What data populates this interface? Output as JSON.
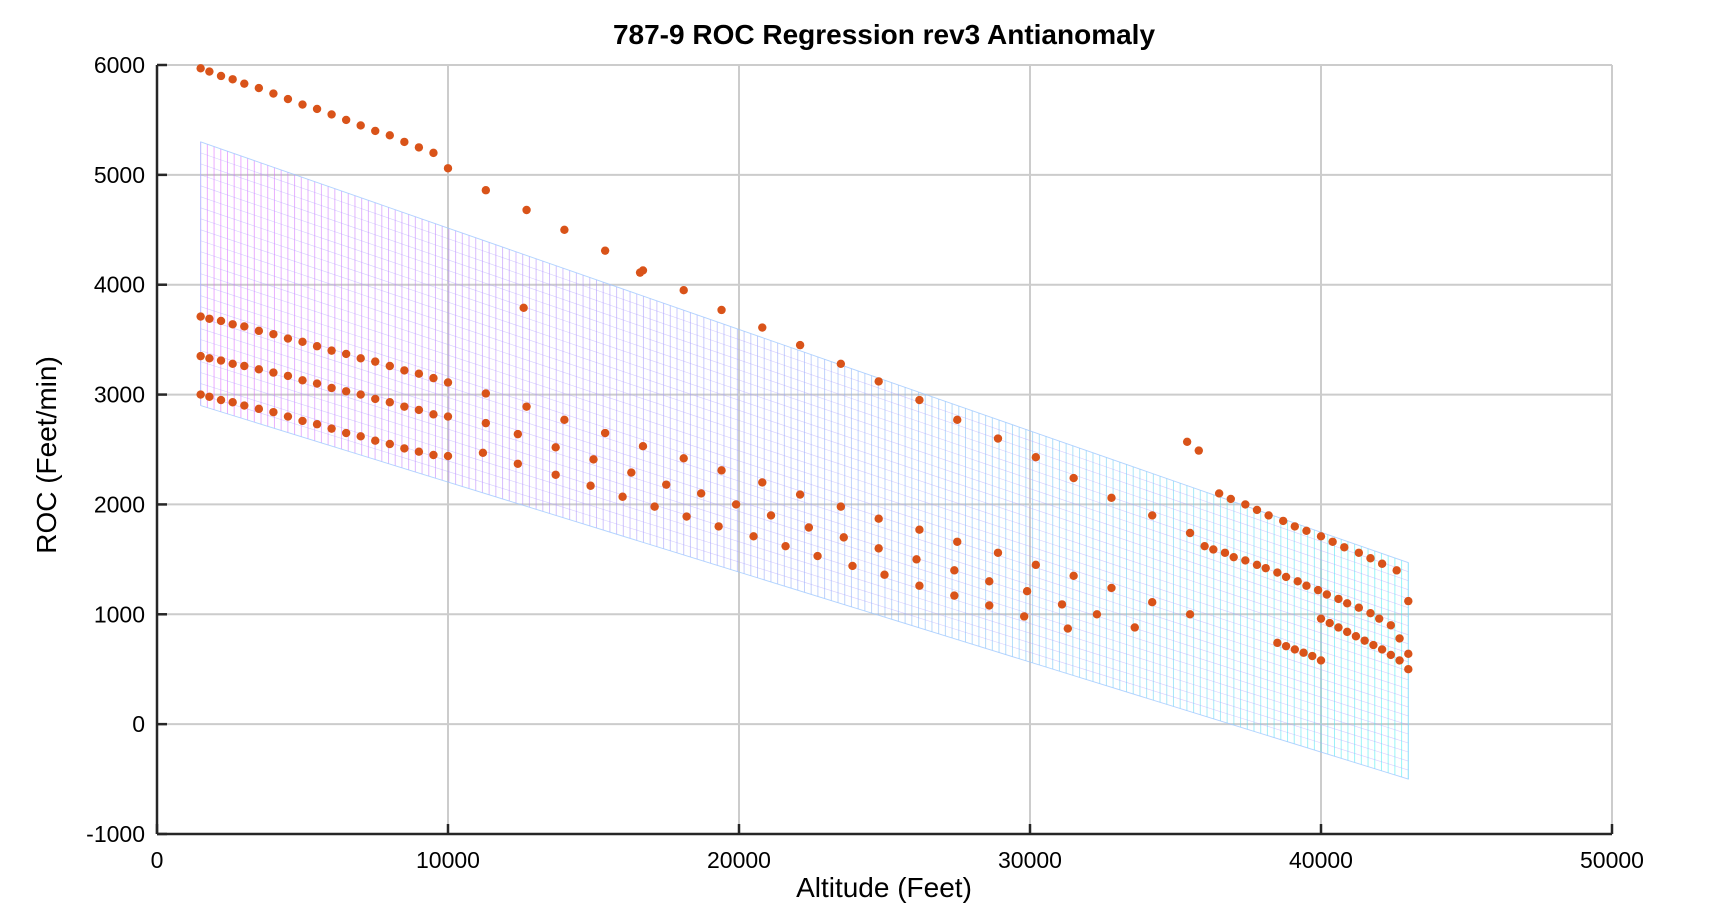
{
  "chart_data": {
    "type": "scatter",
    "title": "787-9 ROC Regression rev3 Antianomaly",
    "xlabel": "Altitude (Feet)",
    "ylabel": "ROC (Feet/min)",
    "xlim": [
      0,
      50000
    ],
    "ylim": [
      -1000,
      6000
    ],
    "xticks": [
      0,
      10000,
      20000,
      30000,
      40000,
      50000
    ],
    "yticks": [
      -1000,
      0,
      1000,
      2000,
      3000,
      4000,
      5000,
      6000
    ],
    "grid": true,
    "colors": {
      "points": "#d95319",
      "surface_high": "#e066ff",
      "surface_low": "#40f0f0",
      "grid": "#cccccc",
      "axis": "#262626"
    },
    "regression_surface": {
      "x_range": [
        1500,
        43000
      ],
      "upper_edge": [
        [
          1500,
          5300
        ],
        [
          43000,
          1470
        ]
      ],
      "lower_edge": [
        [
          1500,
          2900
        ],
        [
          43000,
          -500
        ]
      ]
    },
    "series": [
      {
        "x": [
          1500,
          1800,
          2200,
          2600,
          3000,
          3500,
          4000,
          4500,
          5000,
          5500,
          6000,
          6500,
          7000,
          7500,
          8000,
          8500,
          9000,
          9500,
          10000,
          11300,
          12700,
          14000,
          15400,
          16700,
          18100,
          19400,
          20800,
          22100,
          23500,
          24800,
          26200,
          27500,
          28900,
          30200,
          31500,
          32800,
          34200,
          35500,
          1500,
          1800,
          2200,
          2600,
          3000,
          3500,
          4000,
          4500,
          5000,
          5500,
          6000,
          6500,
          7000,
          7500,
          8000,
          8500,
          9000,
          9500,
          10000,
          11300,
          12700,
          14000,
          15400,
          16700,
          18100,
          19400,
          20800,
          22100,
          23500,
          24800,
          26200,
          27500,
          28900,
          30200,
          31500,
          32800,
          34200,
          35500,
          1500,
          1800,
          2200,
          2600,
          3000,
          3500,
          4000,
          4500,
          5000,
          5500,
          6000,
          6500,
          7000,
          7500,
          8000,
          8500,
          9000,
          9500,
          10000,
          11300,
          12400,
          13700,
          15000,
          16300,
          17500,
          18700,
          19900,
          21100,
          22400,
          23600,
          24800,
          26100,
          27400,
          28600,
          29900,
          31100,
          32300,
          33600,
          1500,
          1800,
          2200,
          2600,
          3000,
          3500,
          4000,
          4500,
          5000,
          5500,
          6000,
          6500,
          7000,
          7500,
          8000,
          8500,
          9000,
          9500,
          10000,
          11200,
          12400,
          13700,
          14900,
          16000,
          17100,
          18200,
          19300,
          20500,
          21600,
          22700,
          23900,
          25000,
          26200,
          27400,
          28600,
          29800,
          36500,
          36900,
          37400,
          37800,
          38200,
          38700,
          39100,
          39500,
          40000,
          40400,
          40800,
          41300,
          41700,
          42100,
          42600,
          43000,
          36000,
          36300,
          36700,
          37000,
          37400,
          37800,
          38100,
          38500,
          38800,
          39200,
          39500,
          39900,
          40200,
          40600,
          40900,
          41300,
          41700,
          42000,
          42400,
          42700,
          43000,
          40000,
          40300,
          40600,
          40900,
          41200,
          41500,
          41800,
          42100,
          42400,
          42700,
          43000,
          38500,
          38800,
          39100,
          39400,
          39700,
          40000,
          35400,
          35800,
          12600,
          16600,
          31300
        ],
        "y": [
          5970,
          5940,
          5900,
          5870,
          5830,
          5790,
          5740,
          5690,
          5640,
          5600,
          5550,
          5500,
          5450,
          5400,
          5360,
          5300,
          5250,
          5200,
          5060,
          4860,
          4680,
          4500,
          4310,
          4130,
          3950,
          3770,
          3610,
          3450,
          3280,
          3120,
          2950,
          2770,
          2600,
          2430,
          2240,
          2060,
          1900,
          1740,
          3710,
          3690,
          3670,
          3640,
          3620,
          3580,
          3550,
          3510,
          3480,
          3440,
          3400,
          3370,
          3330,
          3300,
          3260,
          3220,
          3190,
          3150,
          3110,
          3010,
          2890,
          2770,
          2650,
          2530,
          2420,
          2310,
          2200,
          2090,
          1980,
          1870,
          1770,
          1660,
          1560,
          1450,
          1350,
          1240,
          1110,
          1000,
          3350,
          3330,
          3310,
          3280,
          3260,
          3230,
          3200,
          3170,
          3130,
          3100,
          3060,
          3030,
          3000,
          2960,
          2930,
          2890,
          2860,
          2820,
          2800,
          2740,
          2640,
          2520,
          2410,
          2290,
          2180,
          2100,
          2000,
          1900,
          1790,
          1700,
          1600,
          1500,
          1400,
          1300,
          1210,
          1090,
          1000,
          880,
          3000,
          2980,
          2950,
          2930,
          2900,
          2870,
          2840,
          2800,
          2760,
          2730,
          2690,
          2650,
          2620,
          2580,
          2550,
          2510,
          2480,
          2450,
          2440,
          2470,
          2370,
          2270,
          2170,
          2070,
          1980,
          1890,
          1800,
          1710,
          1620,
          1530,
          1440,
          1360,
          1260,
          1170,
          1080,
          980,
          2100,
          2050,
          2000,
          1950,
          1900,
          1850,
          1800,
          1760,
          1710,
          1660,
          1610,
          1560,
          1510,
          1460,
          1400,
          1120,
          1620,
          1590,
          1560,
          1520,
          1490,
          1450,
          1420,
          1380,
          1340,
          1300,
          1260,
          1220,
          1180,
          1140,
          1100,
          1060,
          1010,
          960,
          900,
          780,
          640,
          960,
          920,
          880,
          840,
          800,
          760,
          720,
          680,
          630,
          580,
          500,
          740,
          710,
          680,
          650,
          620,
          580,
          2570,
          2490,
          3790,
          4110,
          870
        ]
      }
    ]
  }
}
